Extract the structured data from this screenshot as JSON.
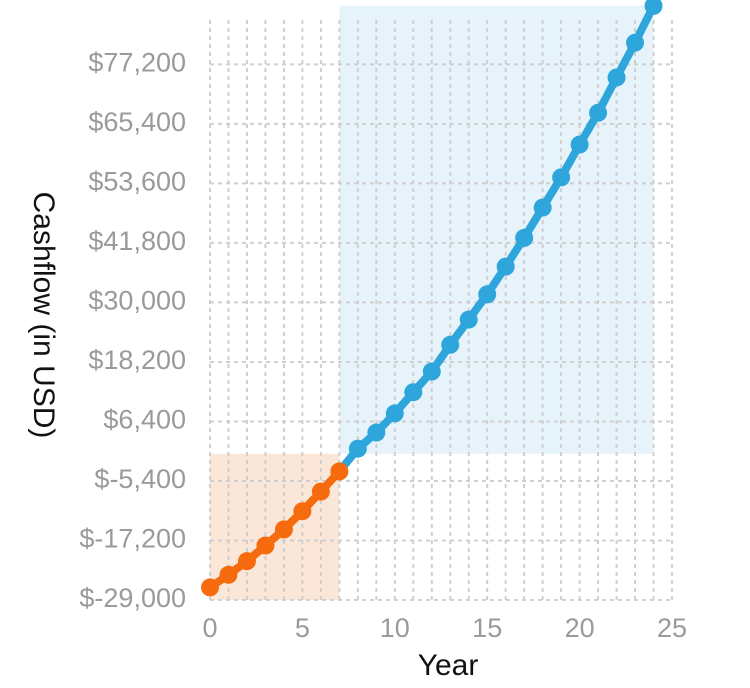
{
  "chart_data": {
    "type": "line",
    "xlabel": "Year",
    "ylabel": "Cashflow (in USD)",
    "xlim": [
      0,
      25
    ],
    "ylim": [
      -29000,
      86000
    ],
    "x_ticks": [
      "0",
      "5",
      "10",
      "15",
      "20",
      "25"
    ],
    "y_ticks": [
      "$-29,000",
      "$-17,200",
      "$-5,400",
      "$6,400",
      "$18,200",
      "$30,000",
      "$41,800",
      "$53,600",
      "$65,400",
      "$77,200"
    ],
    "grid": true,
    "baseline": 0,
    "colors": {
      "negative_line": "#F56B0E",
      "positive_line": "#2EA6DC",
      "negative_fill": "#FBE7D8",
      "positive_fill": "#E7F3FB",
      "grid": "#CFCFCF",
      "tick_text": "#9A9A9A",
      "axis_title": "#111111"
    },
    "series": [
      {
        "values": [
          {
            "x": 0,
            "y": -26500
          },
          {
            "x": 1,
            "y": -24000
          },
          {
            "x": 2,
            "y": -21300
          },
          {
            "x": 3,
            "y": -18200
          },
          {
            "x": 4,
            "y": -15000
          },
          {
            "x": 5,
            "y": -11400
          },
          {
            "x": 6,
            "y": -7500
          },
          {
            "x": 7,
            "y": -3500
          },
          {
            "x": 8,
            "y": 1000
          },
          {
            "x": 9,
            "y": 4200
          },
          {
            "x": 10,
            "y": 8000
          },
          {
            "x": 11,
            "y": 12200
          },
          {
            "x": 12,
            "y": 16300
          },
          {
            "x": 13,
            "y": 21600
          },
          {
            "x": 14,
            "y": 26600
          },
          {
            "x": 15,
            "y": 31600
          },
          {
            "x": 16,
            "y": 37100
          },
          {
            "x": 17,
            "y": 42800
          },
          {
            "x": 18,
            "y": 48800
          },
          {
            "x": 19,
            "y": 54800
          },
          {
            "x": 20,
            "y": 61300
          },
          {
            "x": 21,
            "y": 67600
          },
          {
            "x": 22,
            "y": 74600
          },
          {
            "x": 23,
            "y": 81500
          },
          {
            "x": 24,
            "y": 88800
          }
        ]
      }
    ]
  }
}
